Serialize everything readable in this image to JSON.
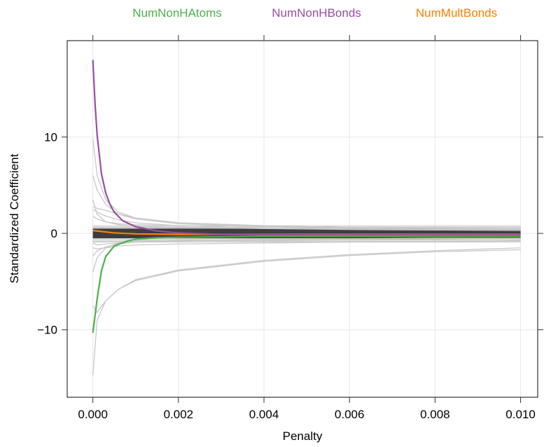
{
  "chart_data": {
    "type": "line",
    "xlabel": "Penalty",
    "ylabel": "Standardized Coefficient",
    "xlim": [
      -0.0006,
      0.0104
    ],
    "ylim": [
      -17.0,
      20.0
    ],
    "x_ticks": [
      0.0,
      0.002,
      0.004,
      0.006,
      0.008,
      0.01
    ],
    "x_tick_labels": [
      "0.000",
      "0.002",
      "0.004",
      "0.006",
      "0.008",
      "0.010"
    ],
    "y_ticks": [
      -10,
      0,
      10
    ],
    "y_tick_labels": [
      "−10",
      "0",
      "10"
    ],
    "grid": true,
    "legend_position": "top",
    "highlighted_series": [
      {
        "name": "NumNonHAtoms",
        "color": "#4daf4a",
        "x": [
          0,
          0.0001,
          0.0002,
          0.0003,
          0.0005,
          0.0008,
          0.001,
          0.0015,
          0.002,
          0.003,
          0.004,
          0.006,
          0.008,
          0.01
        ],
        "values": [
          -10.3,
          -6.8,
          -3.9,
          -2.4,
          -1.3,
          -0.8,
          -0.6,
          -0.45,
          -0.4,
          -0.35,
          -0.3,
          -0.3,
          -0.3,
          -0.3
        ]
      },
      {
        "name": "NumNonHBonds",
        "color": "#984ea3",
        "x": [
          0,
          5e-05,
          0.0001,
          0.0002,
          0.0003,
          0.0004,
          0.0005,
          0.0007,
          0.001,
          0.0015,
          0.002,
          0.003,
          0.005,
          0.008,
          0.01
        ],
        "values": [
          18.0,
          13.5,
          10.2,
          6.2,
          4.2,
          3.0,
          2.2,
          1.3,
          0.7,
          0.25,
          0.05,
          -0.1,
          -0.15,
          -0.15,
          -0.15
        ]
      },
      {
        "name": "NumMultBonds",
        "color": "#ff7f00",
        "x": [
          0,
          0.0002,
          0.0005,
          0.001,
          0.002,
          0.004,
          0.006,
          0.008,
          0.01
        ],
        "values": [
          0.3,
          0.2,
          0.05,
          -0.05,
          -0.1,
          -0.1,
          -0.1,
          -0.1,
          -0.1
        ]
      }
    ],
    "background_series_color": "#c8c8c8",
    "dense_band_color": "#262626",
    "dense_band_range": [
      -0.5,
      0.5
    ],
    "notable_gray_traces": [
      {
        "x": [
          0,
          0.0001,
          0.0003,
          0.0006,
          0.001,
          0.002,
          0.004,
          0.006,
          0.008,
          0.01
        ],
        "values": [
          -14.7,
          -9.0,
          -7.0,
          -5.8,
          -4.9,
          -3.9,
          -2.9,
          -2.3,
          -1.9,
          -1.7
        ]
      },
      {
        "x": [
          0,
          0.0001,
          0.0003,
          0.0006,
          0.001,
          0.002,
          0.004,
          0.006,
          0.008,
          0.01
        ],
        "values": [
          -7.5,
          -8.2,
          -7.0,
          -5.8,
          -4.8,
          -3.8,
          -2.8,
          -2.2,
          -1.8,
          -1.5
        ]
      },
      {
        "x": [
          0,
          0.0001,
          0.0003,
          0.0006,
          0.001,
          0.002,
          0.004,
          0.006,
          0.008,
          0.01
        ],
        "values": [
          9.8,
          6.0,
          3.5,
          2.2,
          1.6,
          1.1,
          0.8,
          0.6,
          0.5,
          0.5
        ]
      },
      {
        "x": [
          0,
          0.0001,
          0.0003,
          0.0006,
          0.001,
          0.002,
          0.004,
          0.006,
          0.008,
          0.01
        ],
        "values": [
          6.0,
          4.5,
          3.0,
          2.0,
          1.5,
          1.0,
          0.7,
          0.5,
          0.4,
          0.4
        ]
      },
      {
        "x": [
          0,
          0.0001,
          0.0003,
          0.0006,
          0.001,
          0.002,
          0.004,
          0.006,
          0.008,
          0.01
        ],
        "values": [
          2.8,
          2.6,
          2.4,
          2.0,
          1.6,
          1.1,
          0.8,
          0.6,
          0.5,
          0.5
        ]
      },
      {
        "x": [
          0,
          0.0001,
          0.0003,
          0.0006,
          0.001,
          0.002,
          0.004,
          0.006,
          0.008,
          0.01
        ],
        "values": [
          2.5,
          2.2,
          1.8,
          1.4,
          1.1,
          0.8,
          0.5,
          0.4,
          0.35,
          0.3
        ]
      },
      {
        "x": [
          0,
          0.0001,
          0.0003,
          0.0006,
          0.001,
          0.002,
          0.004,
          0.006,
          0.008,
          0.01
        ],
        "values": [
          -2.3,
          -1.8,
          -1.4,
          -1.1,
          -0.9,
          -0.8,
          -0.7,
          -0.6,
          -0.55,
          -0.5
        ]
      },
      {
        "x": [
          0,
          0.0001,
          0.0003,
          0.0006,
          0.001,
          0.002,
          0.004,
          0.006,
          0.008,
          0.01
        ],
        "values": [
          -1.5,
          -1.6,
          -1.5,
          -1.3,
          -1.2,
          -1.1,
          -1.0,
          -0.9,
          -0.9,
          -0.8
        ]
      },
      {
        "x": [
          0,
          0.0001,
          0.0003,
          0.0006,
          0.001,
          0.002,
          0.004,
          0.006,
          0.008,
          0.01
        ],
        "values": [
          1.8,
          1.5,
          1.2,
          1.0,
          0.9,
          0.8,
          0.7,
          0.6,
          0.55,
          0.5
        ]
      },
      {
        "x": [
          0,
          0.0001,
          0.0003,
          0.0006,
          0.001,
          0.002,
          0.004,
          0.006,
          0.008,
          0.01
        ],
        "values": [
          -1.0,
          -1.2,
          -1.1,
          -1.0,
          -0.9,
          -0.8,
          -0.75,
          -0.7,
          -0.7,
          -0.65
        ]
      },
      {
        "x": [
          0,
          0.0001,
          0.0003,
          0.0006,
          0.001,
          0.002,
          0.004,
          0.006,
          0.008,
          0.01
        ],
        "values": [
          3.5,
          2.0,
          1.2,
          0.9,
          0.7,
          0.6,
          0.5,
          0.45,
          0.4,
          0.4
        ]
      },
      {
        "x": [
          0,
          0.0001,
          0.0003,
          0.0006,
          0.001,
          0.002,
          0.004,
          0.006,
          0.008,
          0.01
        ],
        "values": [
          -4.0,
          -2.5,
          -1.5,
          -1.0,
          -0.8,
          -0.7,
          -0.6,
          -0.55,
          -0.5,
          -0.5
        ]
      }
    ]
  }
}
